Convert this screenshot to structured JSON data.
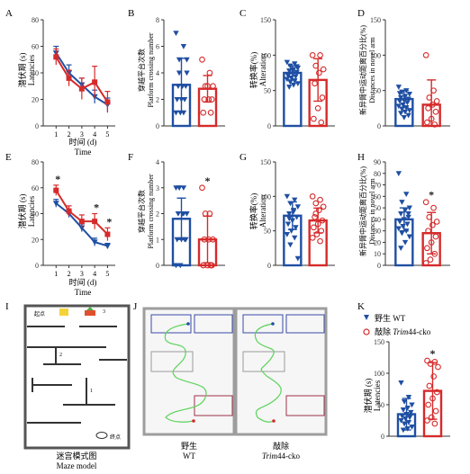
{
  "colors": {
    "wt": "#1f4fa3",
    "ko": "#d62a2a",
    "grid": "#333333",
    "track": "#5bd35b",
    "box_blue": "#3a4aa8",
    "box_grey": "#9b9b9b",
    "box_red": "#a03048"
  },
  "panel_labels": {
    "A": "A",
    "B": "B",
    "C": "C",
    "D": "D",
    "E": "E",
    "F": "F",
    "G": "G",
    "H": "H",
    "I": "I",
    "J": "J",
    "K": "K"
  },
  "axis_text": {
    "latency_cn": "潜伏期 (s)",
    "latency_en": "Latencies",
    "time_cn": "时间 (d)",
    "time_en": "Time",
    "platform_cn": "穿越平台次数",
    "platform_en": "Platform crossing number",
    "alter_cn": "转换率(%)",
    "alter_en": "Alteration",
    "novel_cn": "新异臂中运动距离百分比(%)",
    "novel_en": "Distances in novel arm"
  },
  "significance": "*",
  "maze": {
    "title_cn": "迷宫模式图",
    "title_en": "Maze model",
    "label_1": "1",
    "label_2": "2",
    "label_3": "3",
    "start": "起点",
    "end": "终点"
  },
  "tracks": {
    "wt_cn": "野生",
    "wt_en": "WT",
    "ko_cn": "敲除",
    "ko_en_gene": "Trim",
    "ko_en_suffix": "44-cko"
  },
  "legend": {
    "wt_cn": "野生",
    "wt_en": "WT",
    "ko_cn": "敲除",
    "ko_gene": "Trim",
    "ko_suffix": "44-cko"
  },
  "chart_data": [
    {
      "panel": "A",
      "type": "line",
      "x": [
        1,
        2,
        3,
        4,
        5
      ],
      "xlim": [
        0,
        5.6
      ],
      "ylim": [
        0,
        80
      ],
      "yticks": [
        0,
        20,
        40,
        60,
        80
      ],
      "xlabel": "时间 (d) Time",
      "ylabel": "潜伏期 (s) Latencies",
      "series": [
        {
          "values": [
            55,
            40,
            31,
            22,
            16
          ],
          "err": [
            5,
            6,
            5,
            5,
            5
          ]
        },
        {
          "values": [
            52,
            36,
            28,
            33,
            18
          ],
          "err": [
            6,
            6,
            8,
            12,
            8
          ]
        }
      ]
    },
    {
      "panel": "B",
      "type": "bar",
      "categories": [
        "WT",
        "Trim44-cko"
      ],
      "ylim": [
        0,
        8
      ],
      "yticks": [
        0,
        2,
        4,
        6,
        8
      ],
      "ylabel": "穿越平台次数 Platform crossing number",
      "values": [
        3.1,
        2.8
      ],
      "err": [
        2.0,
        1.0
      ],
      "points": [
        [
          7,
          6,
          5,
          4,
          3,
          3,
          3,
          2,
          2,
          2,
          1,
          1,
          1,
          4,
          5
        ],
        [
          5,
          4,
          3,
          3,
          2,
          2,
          2,
          3,
          1,
          1
        ]
      ]
    },
    {
      "panel": "C",
      "type": "bar",
      "categories": [
        "WT",
        "Trim44-cko"
      ],
      "ylim": [
        0,
        150
      ],
      "yticks": [
        0,
        50,
        100,
        150
      ],
      "ylabel": "转换率(%) Alteration",
      "values": [
        75,
        65
      ],
      "err": [
        10,
        30
      ],
      "points": [
        [
          90,
          88,
          85,
          82,
          80,
          78,
          76,
          74,
          72,
          70,
          68,
          66,
          64,
          62,
          60,
          58,
          55,
          84,
          79,
          71
        ],
        [
          100,
          100,
          85,
          80,
          75,
          60,
          40,
          25,
          10,
          5
        ]
      ]
    },
    {
      "panel": "D",
      "type": "bar",
      "categories": [
        "WT",
        "Trim44-cko"
      ],
      "ylim": [
        0,
        150
      ],
      "yticks": [
        0,
        50,
        100,
        150
      ],
      "ylabel": "新异臂中运动距离百分比(%) Distances in novel arm",
      "values": [
        38,
        30
      ],
      "err": [
        12,
        35
      ],
      "points": [
        [
          55,
          50,
          48,
          45,
          42,
          40,
          38,
          36,
          35,
          33,
          30,
          28,
          26,
          24,
          22,
          20,
          18,
          15,
          12,
          46
        ],
        [
          100,
          50,
          40,
          35,
          30,
          25,
          20,
          10,
          5,
          2
        ]
      ]
    },
    {
      "panel": "E",
      "type": "line",
      "x": [
        1,
        2,
        3,
        4,
        5
      ],
      "xlim": [
        0,
        5.6
      ],
      "ylim": [
        0,
        80
      ],
      "yticks": [
        0,
        20,
        40,
        60,
        80
      ],
      "xlabel": "时间 (d) Time",
      "ylabel": "潜伏期 (s) Latencies",
      "significant_x": [
        1,
        4,
        5
      ],
      "series": [
        {
          "values": [
            48,
            40,
            29,
            18,
            15
          ],
          "err": [
            3,
            3,
            3,
            3,
            2
          ]
        },
        {
          "values": [
            58,
            42,
            34,
            34,
            24
          ],
          "err": [
            4,
            4,
            5,
            6,
            5
          ]
        }
      ]
    },
    {
      "panel": "F",
      "type": "bar",
      "categories": [
        "WT",
        "Trim44-cko"
      ],
      "ylim": [
        0,
        4
      ],
      "yticks": [
        0,
        1,
        2,
        3,
        4
      ],
      "ylabel": "穿越平台次数 Platform crossing number",
      "values": [
        1.8,
        1.0
      ],
      "err": [
        0.8,
        0.9
      ],
      "significant": [
        false,
        true
      ],
      "points": [
        [
          3,
          3,
          3,
          2,
          2,
          2,
          1,
          1,
          1,
          1,
          0,
          0,
          2,
          3
        ],
        [
          3,
          2,
          2,
          1,
          1,
          1,
          0,
          0,
          0,
          0
        ]
      ]
    },
    {
      "panel": "G",
      "type": "bar",
      "categories": [
        "WT",
        "Trim44-cko"
      ],
      "ylim": [
        0,
        150
      ],
      "yticks": [
        0,
        50,
        100,
        150
      ],
      "ylabel": "转换率(%) Alteration",
      "values": [
        72,
        65
      ],
      "err": [
        20,
        18
      ],
      "points": [
        [
          100,
          95,
          90,
          85,
          80,
          75,
          70,
          65,
          60,
          55,
          50,
          45,
          40,
          30,
          10,
          78,
          68
        ],
        [
          100,
          95,
          90,
          85,
          80,
          70,
          65,
          60,
          55,
          50,
          45,
          40,
          35,
          75
        ]
      ]
    },
    {
      "panel": "H",
      "type": "bar",
      "categories": [
        "WT",
        "Trim44-cko"
      ],
      "ylim": [
        0,
        90
      ],
      "yticks": [
        0,
        10,
        20,
        30,
        40,
        50,
        60,
        70,
        80,
        90
      ],
      "ylabel": "新异臂中运动距离百分比(%) Distances in novel arm",
      "values": [
        40,
        28
      ],
      "err": [
        10,
        18
      ],
      "significant": [
        false,
        true
      ],
      "points": [
        [
          80,
          62,
          55,
          50,
          48,
          45,
          42,
          40,
          38,
          36,
          34,
          32,
          30,
          28,
          25,
          20,
          15,
          45
        ],
        [
          55,
          50,
          42,
          38,
          35,
          30,
          25,
          20,
          15,
          10,
          5,
          2
        ]
      ]
    },
    {
      "panel": "K",
      "type": "bar",
      "categories": [
        "WT",
        "Trim44-cko"
      ],
      "ylim": [
        0,
        150
      ],
      "yticks": [
        0,
        50,
        100,
        150
      ],
      "ylabel": "潜伏期 (s) Latencies",
      "values": [
        35,
        72
      ],
      "err": [
        25,
        45
      ],
      "significant": [
        false,
        true
      ],
      "points": [
        [
          85,
          62,
          55,
          50,
          45,
          42,
          38,
          35,
          32,
          30,
          28,
          25,
          22,
          20,
          15,
          12,
          10
        ],
        [
          120,
          118,
          115,
          110,
          95,
          80,
          70,
          60,
          50,
          40,
          30,
          25,
          20
        ]
      ]
    }
  ]
}
